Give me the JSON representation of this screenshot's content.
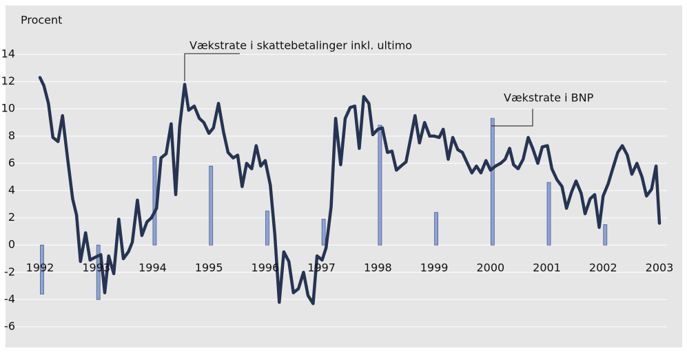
{
  "chart_data": {
    "type": "bar",
    "ylabel": "Procent",
    "xlim": [
      1992,
      2003
    ],
    "ylim": [
      -6,
      14
    ],
    "yticks": [
      -6,
      -4,
      -2,
      0,
      2,
      4,
      6,
      8,
      10,
      12,
      14
    ],
    "xticks": [
      1992,
      1993,
      1994,
      1995,
      1996,
      1997,
      1998,
      1999,
      2000,
      2001,
      2002,
      2003
    ],
    "grid": true,
    "annotations": [
      "Vækstrate i skattebetalinger inkl. ultimo",
      "Vækstrate i BNP"
    ],
    "series": [
      {
        "name": "Vækstrate i BNP",
        "type": "bar",
        "color": "#8ea3d3",
        "x": [
          1992,
          1993,
          1994,
          1995,
          1996,
          1997,
          1998,
          1999,
          2000,
          2001,
          2002
        ],
        "values": [
          -3.6,
          -4.0,
          6.5,
          5.8,
          2.5,
          1.9,
          8.8,
          2.4,
          9.3,
          4.6,
          1.5
        ]
      },
      {
        "name": "Vækstrate i skattebetalinger inkl. ultimo",
        "type": "line",
        "color": "#263452",
        "x": [
          1992.0,
          1992.07,
          1992.15,
          1992.23,
          1992.32,
          1992.4,
          1992.49,
          1992.58,
          1992.65,
          1992.72,
          1992.81,
          1992.89,
          1992.98,
          1993.08,
          1993.15,
          1993.22,
          1993.31,
          1993.4,
          1993.48,
          1993.57,
          1993.64,
          1993.73,
          1993.81,
          1993.9,
          1993.98,
          1994.07,
          1994.15,
          1994.24,
          1994.33,
          1994.41,
          1994.48,
          1994.57,
          1994.64,
          1994.74,
          1994.83,
          1994.91,
          1995.0,
          1995.08,
          1995.17,
          1995.26,
          1995.34,
          1995.43,
          1995.51,
          1995.59,
          1995.67,
          1995.76,
          1995.84,
          1995.92,
          1996.0,
          1996.09,
          1996.17,
          1996.25,
          1996.33,
          1996.42,
          1996.5,
          1996.59,
          1996.68,
          1996.76,
          1996.85,
          1996.92,
          1997.01,
          1997.08,
          1997.17,
          1997.25,
          1997.34,
          1997.42,
          1997.51,
          1997.59,
          1997.67,
          1997.75,
          1997.84,
          1997.91,
          1998.0,
          1998.08,
          1998.17,
          1998.25,
          1998.33,
          1998.41,
          1998.5,
          1998.59,
          1998.66,
          1998.74,
          1998.83,
          1998.92,
          1999.0,
          1999.09,
          1999.16,
          1999.25,
          1999.33,
          1999.42,
          1999.5,
          1999.59,
          1999.67,
          1999.75,
          1999.83,
          1999.92,
          2000.0,
          2000.09,
          2000.18,
          2000.26,
          2000.34,
          2000.41,
          2000.49,
          2000.58,
          2000.67,
          2000.75,
          2000.84,
          2000.92,
          2001.01,
          2001.09,
          2001.18,
          2001.27,
          2001.35,
          2001.44,
          2001.52,
          2001.61,
          2001.68,
          2001.77,
          2001.85,
          2001.93,
          2002.0,
          2002.09,
          2002.17,
          2002.26,
          2002.34,
          2002.43,
          2002.51,
          2002.6,
          2002.69,
          2002.77,
          2002.86,
          2002.94,
          2003.0
        ],
        "values": [
          12.3,
          11.7,
          10.4,
          7.9,
          7.6,
          9.5,
          6.4,
          3.4,
          2.2,
          -1.2,
          0.9,
          -1.1,
          -0.9,
          -0.7,
          -3.5,
          -0.8,
          -2.1,
          1.9,
          -1.0,
          -0.5,
          0.2,
          3.3,
          0.7,
          1.7,
          2.0,
          2.7,
          6.4,
          6.7,
          8.9,
          3.7,
          8.7,
          11.8,
          9.9,
          10.2,
          9.3,
          9.0,
          8.2,
          8.6,
          10.4,
          8.3,
          6.8,
          6.4,
          6.6,
          4.3,
          6.0,
          5.6,
          7.3,
          5.8,
          6.2,
          4.4,
          0.8,
          -4.2,
          -0.5,
          -1.2,
          -3.5,
          -3.2,
          -2.0,
          -3.7,
          -4.3,
          -0.8,
          -1.1,
          -0.2,
          2.8,
          9.3,
          5.9,
          9.3,
          10.1,
          10.2,
          7.1,
          10.9,
          10.4,
          8.1,
          8.5,
          8.6,
          6.8,
          6.9,
          5.5,
          5.8,
          6.1,
          8.0,
          9.5,
          7.5,
          9.0,
          8.0,
          8.0,
          7.9,
          8.5,
          6.3,
          7.9,
          7.0,
          6.8,
          6.0,
          5.3,
          5.8,
          5.3,
          6.2,
          5.5,
          5.8,
          6.0,
          6.3,
          7.1,
          5.9,
          5.6,
          6.3,
          7.9,
          7.1,
          6.0,
          7.2,
          7.3,
          5.6,
          4.8,
          4.3,
          2.7,
          3.9,
          4.7,
          3.8,
          2.3,
          3.4,
          3.7,
          1.3,
          3.6,
          4.5,
          5.6,
          6.8,
          7.3,
          6.6,
          5.2,
          6.0,
          5.0,
          3.6,
          4.1,
          5.8,
          1.6
        ]
      }
    ]
  }
}
